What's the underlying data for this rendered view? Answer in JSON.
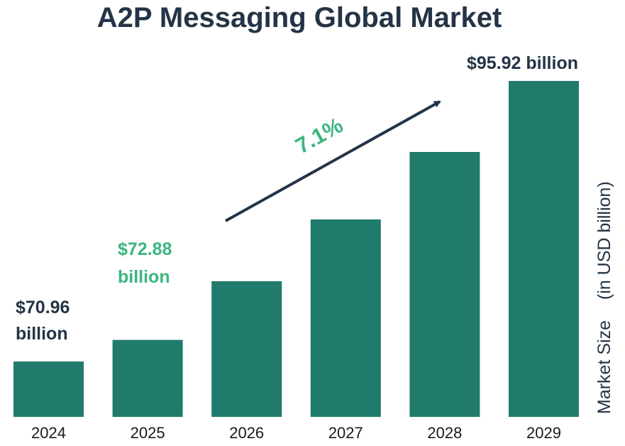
{
  "chart_data": {
    "type": "bar",
    "title": "A2P Messaging Global Market",
    "categories": [
      "2024",
      "2025",
      "2026",
      "2027",
      "2028",
      "2029"
    ],
    "values": [
      70.96,
      72.88,
      78.1,
      83.6,
      89.6,
      95.92
    ],
    "ylabel": "Market Size",
    "ylabel_unit": "(in USD billion)",
    "annotations": {
      "first": {
        "line1": "$70.96",
        "line2": "billion"
      },
      "second": {
        "line1": "$72.88",
        "line2": "billion"
      },
      "last": "$95.92 billion",
      "cagr": "7.1%"
    },
    "colors": {
      "bar": "#207b6c",
      "title": "#243446",
      "highlight": "#3bb57f",
      "arrow": "#243446"
    },
    "grid": false
  }
}
